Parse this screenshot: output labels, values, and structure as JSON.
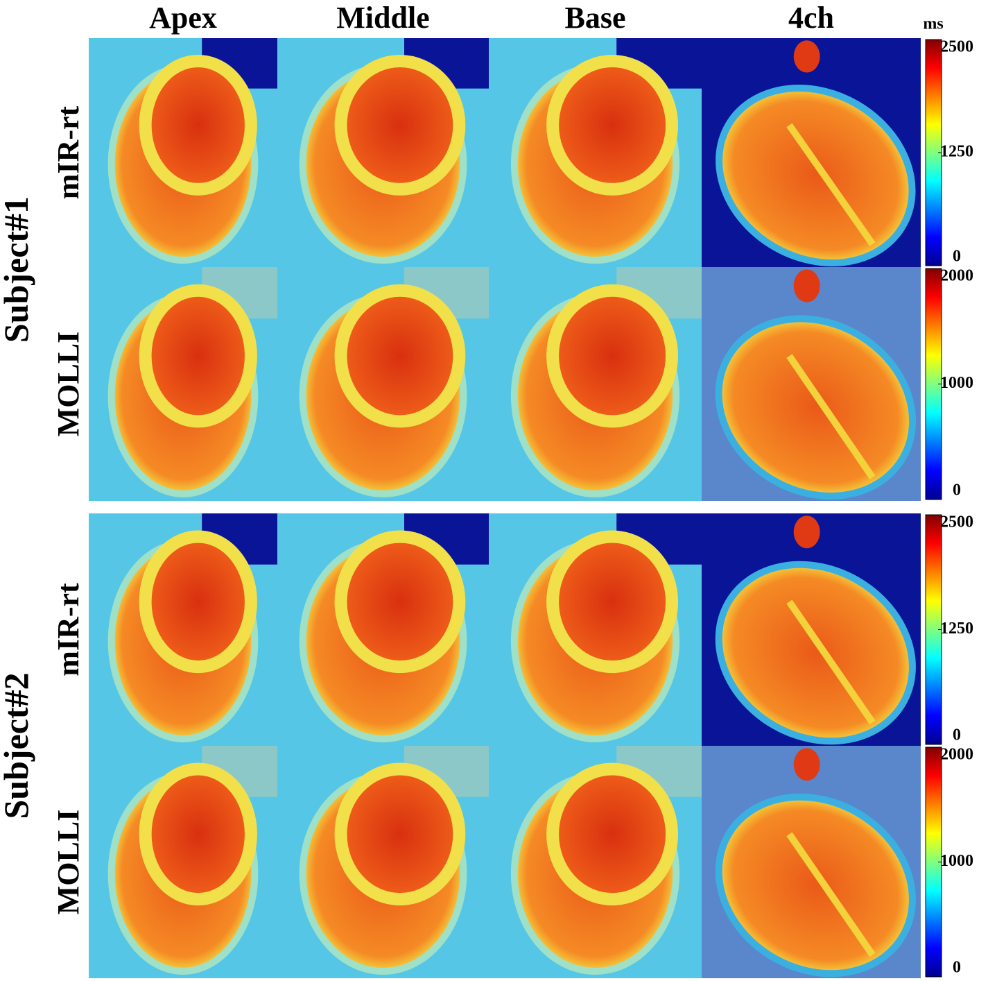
{
  "columns": [
    "Apex",
    "Middle",
    "Base",
    "4ch"
  ],
  "unit": "ms",
  "subjects": [
    {
      "label": "Subject#1",
      "rows": [
        {
          "label": "mIR-rt",
          "colorbar": {
            "lim": [
              0,
              2500
            ],
            "ticks": [
              0,
              1250,
              2500
            ]
          }
        },
        {
          "label": "MOLLI",
          "colorbar": {
            "lim": [
              0,
              2000
            ],
            "ticks": [
              0,
              1000,
              2000
            ]
          }
        }
      ]
    },
    {
      "label": "Subject#2",
      "rows": [
        {
          "label": "mIR-rt",
          "colorbar": {
            "lim": [
              0,
              2500
            ],
            "ticks": [
              0,
              1250,
              2500
            ]
          }
        },
        {
          "label": "MOLLI",
          "colorbar": {
            "lim": [
              0,
              2000
            ],
            "ticks": [
              0,
              1000,
              2000
            ]
          }
        }
      ]
    }
  ]
}
